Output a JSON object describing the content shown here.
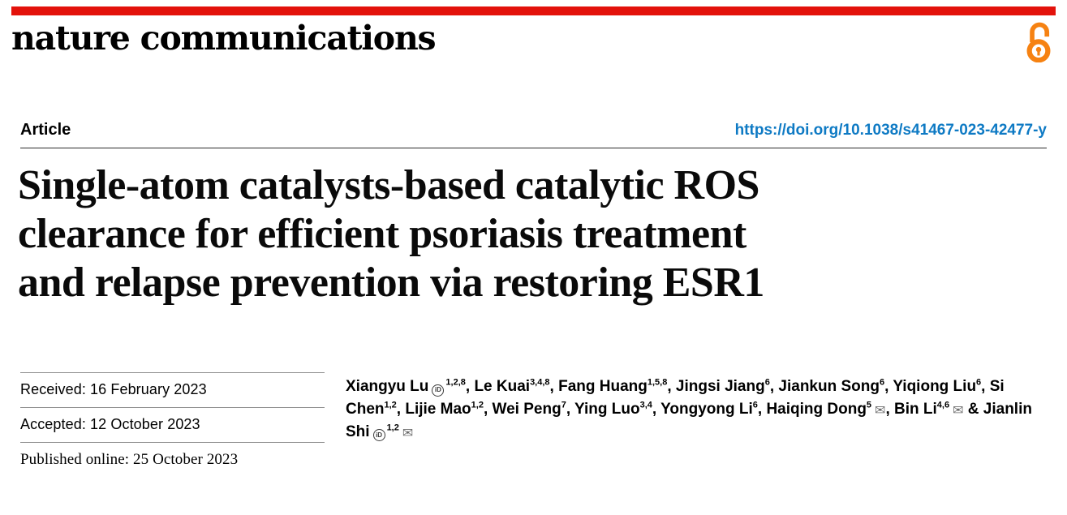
{
  "header": {
    "journal_name": "nature communications",
    "open_access_icon": "open-access-lock-icon"
  },
  "article": {
    "type_label": "Article",
    "doi": "https://doi.org/10.1038/s41467-023-42477-y",
    "title": "Single-atom catalysts-based catalytic ROS clearance for efficient psoriasis treatment and relapse prevention via restoring ESR1",
    "title_lines": [
      "Single-atom catalysts-based catalytic ROS",
      "clearance for efficient psoriasis treatment",
      "and relapse prevention via restoring ESR1"
    ]
  },
  "dates": {
    "received": "Received: 16 February 2023",
    "accepted": "Accepted: 12 October 2023",
    "published": "Published online: 25 October 2023"
  },
  "authors": [
    {
      "name": "Xiangyu Lu",
      "orcid": true,
      "affiliations": "1,2,8"
    },
    {
      "name": "Le Kuai",
      "affiliations": "3,4,8"
    },
    {
      "name": "Fang Huang",
      "affiliations": "1,5,8"
    },
    {
      "name": "Jingsi Jiang",
      "affiliations": "6"
    },
    {
      "name": "Jiankun Song",
      "affiliations": "6"
    },
    {
      "name": "Yiqiong Liu",
      "affiliations": "6"
    },
    {
      "name": "Si Chen",
      "affiliations": "1,2"
    },
    {
      "name": "Lijie Mao",
      "affiliations": "1,2"
    },
    {
      "name": "Wei Peng",
      "affiliations": "7"
    },
    {
      "name": "Ying Luo",
      "affiliations": "3,4"
    },
    {
      "name": "Yongyong Li",
      "affiliations": "6"
    },
    {
      "name": "Haiqing Dong",
      "affiliations": "5",
      "email": true
    },
    {
      "name": "Bin Li",
      "affiliations": "4,6",
      "email": true
    },
    {
      "name": "Jianlin Shi",
      "orcid": true,
      "affiliations": "1,2",
      "email": true
    }
  ],
  "colors": {
    "brand_red": "#e3120b",
    "open_access_orange": "#f68212",
    "link_blue": "#0e7ac4"
  }
}
